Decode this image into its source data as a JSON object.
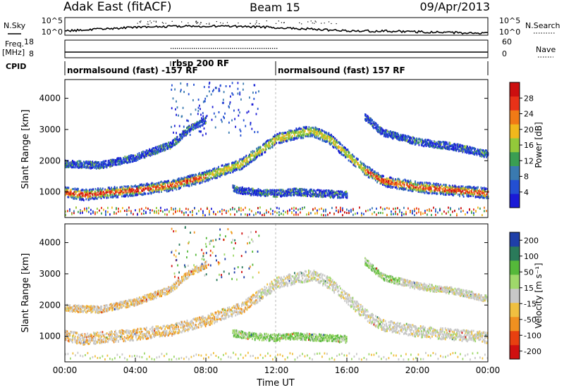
{
  "header": {
    "site": "Adak East (fitACF)",
    "beam": "Beam 15",
    "date": "09/Apr/2013"
  },
  "top_panels": {
    "nsky_label": "N.Sky",
    "nsky_ticks": [
      "10^5",
      "10^0"
    ],
    "nsearch_label": "N.Search",
    "nsearch_ticks": [
      "10^5",
      "10^0"
    ],
    "freq_label": "Freq.",
    "freq_unit": "[MHz]",
    "freq_ticks": [
      "18",
      "8"
    ],
    "nave_label": "Nave",
    "nave_ticks": [
      "60",
      "0"
    ],
    "cpid_label": "CPID",
    "cpid_segments": [
      {
        "label": "normalsound (fast) -157 RF",
        "start_hour": 0,
        "end_hour": 12
      },
      {
        "label": "rbsp 200 RF",
        "start_hour": 6,
        "end_hour": 12
      },
      {
        "label": "normalsound (fast) 157 RF",
        "start_hour": 12,
        "end_hour": 24
      }
    ]
  },
  "chart_data": [
    {
      "type": "heatmap",
      "quantity": "Power",
      "ylabel": "Slant Range [km]",
      "ylim": [
        180,
        4600
      ],
      "yticks": [
        1000,
        2000,
        3000,
        4000
      ],
      "xlim": [
        "00:00",
        "24:00"
      ],
      "colorbar_label": "Power [dB]",
      "colorbar_ticks": [
        4,
        8,
        12,
        16,
        20,
        24,
        28
      ],
      "colorbar_colors": [
        "#1a1ad6",
        "#234fd2",
        "#3a7ab0",
        "#3a9e52",
        "#93c93a",
        "#f0b81c",
        "#f07a16",
        "#e83218",
        "#cc0f0f"
      ],
      "features": [
        {
          "name": "lower band",
          "points": [
            [
              0,
              1000
            ],
            [
              1,
              900
            ],
            [
              2,
              950
            ],
            [
              4,
              1050
            ],
            [
              6,
              1200
            ],
            [
              8,
              1500
            ],
            [
              10,
              1900
            ],
            [
              11,
              2300
            ],
            [
              12,
              2700
            ],
            [
              13,
              2850
            ],
            [
              14,
              2950
            ],
            [
              15,
              2700
            ],
            [
              16,
              2200
            ],
            [
              17,
              1700
            ],
            [
              18,
              1350
            ],
            [
              20,
              1150
            ],
            [
              22,
              1050
            ],
            [
              24,
              950
            ]
          ]
        },
        {
          "name": "upper band",
          "points": [
            [
              0,
              1900
            ],
            [
              2,
              1850
            ],
            [
              4,
              2100
            ],
            [
              6,
              2500
            ],
            [
              7,
              3000
            ],
            [
              8,
              3300
            ]
          ]
        },
        {
          "name": "late upper band",
          "points": [
            [
              17,
              3400
            ],
            [
              18,
              2900
            ],
            [
              20,
              2600
            ],
            [
              22,
              2450
            ],
            [
              24,
              2200
            ]
          ]
        },
        {
          "name": "mid patch",
          "points": [
            [
              9.5,
              1100
            ],
            [
              10.5,
              1000
            ],
            [
              12,
              950
            ],
            [
              13,
              1000
            ],
            [
              14.5,
              950
            ],
            [
              16,
              900
            ]
          ]
        }
      ]
    },
    {
      "type": "heatmap",
      "quantity": "Velocity",
      "ylabel": "Slant Range [km]",
      "ylim": [
        180,
        4600
      ],
      "yticks": [
        1000,
        2000,
        3000,
        4000
      ],
      "xlabel": "Time UT",
      "xticks": [
        "00:00",
        "04:00",
        "08:00",
        "12:00",
        "16:00",
        "20:00",
        "00:00"
      ],
      "colorbar_label": "Velocity [m s⁻¹]",
      "colorbar_ticks": [
        200,
        100,
        50,
        15,
        -15,
        -50,
        -100,
        -200
      ],
      "colorbar_colors": [
        "#1f3fa8",
        "#2a7a5a",
        "#55b83a",
        "#9fd86a",
        "#c8c8c8",
        "#f0c040",
        "#f09020",
        "#e84010",
        "#d01010"
      ]
    }
  ]
}
